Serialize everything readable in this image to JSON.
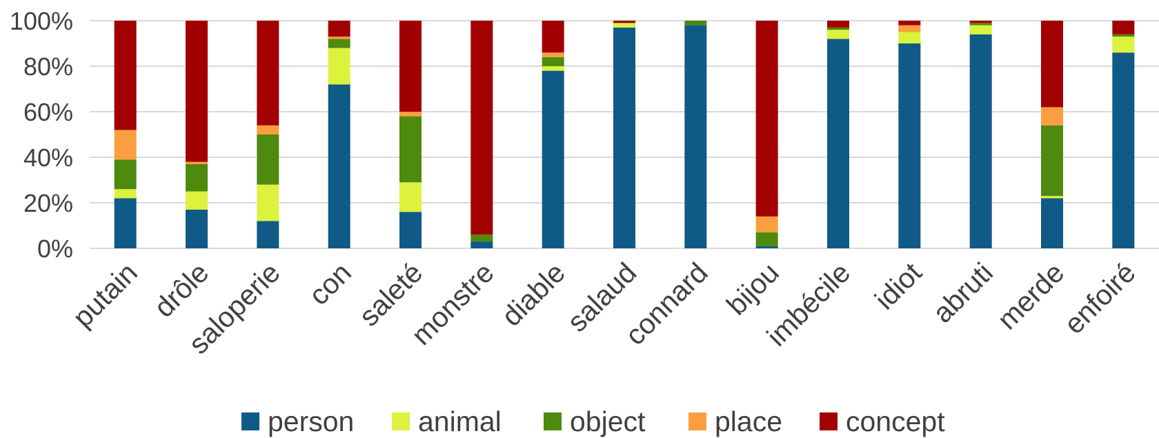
{
  "chart_data": {
    "type": "bar",
    "stacked": true,
    "normalized": true,
    "title": "",
    "xlabel": "",
    "ylabel": "",
    "ylim": [
      0,
      100
    ],
    "y_ticks": [
      "0%",
      "20%",
      "40%",
      "60%",
      "80%",
      "100%"
    ],
    "y_tick_values": [
      0,
      20,
      40,
      60,
      80,
      100
    ],
    "grid": true,
    "legend_position": "bottom",
    "categories": [
      "putain",
      "drôle",
      "saloperie",
      "con",
      "saleté",
      "monstre",
      "diable",
      "salaud",
      "connard",
      "bijou",
      "imbécile",
      "idiot",
      "abruti",
      "merde",
      "enfoiré"
    ],
    "series": [
      {
        "name": "person",
        "color": "#0f5a87",
        "values": [
          22,
          17,
          12,
          72,
          16,
          3,
          78,
          97,
          98,
          1,
          92,
          90,
          94,
          22,
          86
        ]
      },
      {
        "name": "animal",
        "color": "#dcf23d",
        "values": [
          4,
          8,
          16,
          16,
          13,
          0,
          2,
          2,
          0,
          0,
          4,
          5,
          4,
          1,
          7
        ]
      },
      {
        "name": "object",
        "color": "#4e8a0e",
        "values": [
          13,
          12,
          22,
          4,
          29,
          3,
          4,
          0,
          2,
          6,
          1,
          0,
          1,
          31,
          1
        ]
      },
      {
        "name": "place",
        "color": "#fb9e3f",
        "values": [
          13,
          1,
          4,
          1,
          2,
          0,
          2,
          0,
          0,
          7,
          0,
          3,
          0,
          8,
          0
        ]
      },
      {
        "name": "concept",
        "color": "#a20000",
        "values": [
          48,
          62,
          46,
          7,
          40,
          94,
          14,
          1,
          0,
          86,
          3,
          2,
          1,
          38,
          6
        ]
      }
    ]
  }
}
